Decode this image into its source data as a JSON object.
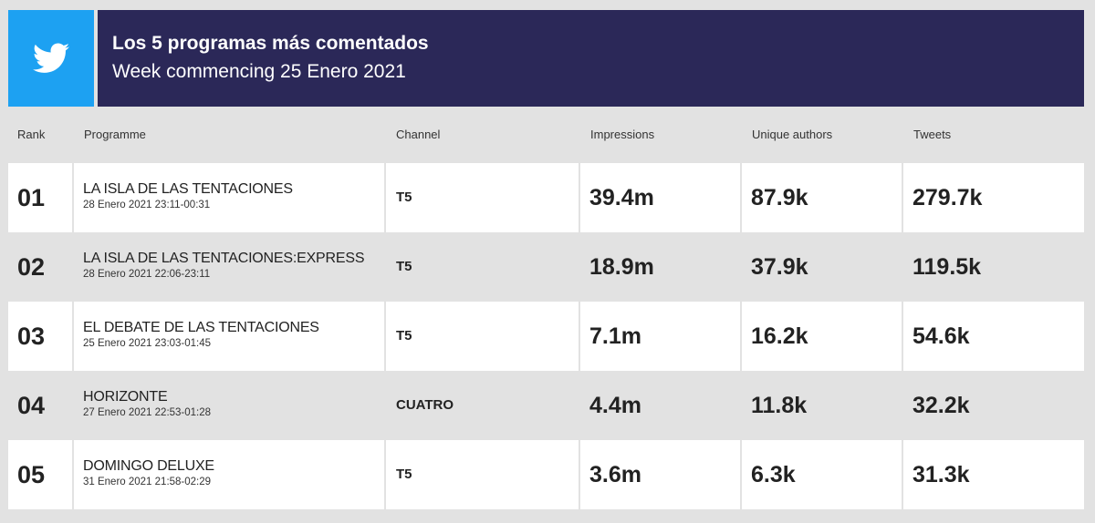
{
  "header": {
    "icon": "twitter-bird-icon",
    "brand_color": "#1da1f2",
    "banner_color": "#2b2858",
    "title": "Los 5 programas más comentados",
    "subtitle": "Week commencing 25 Enero 2021"
  },
  "chart_data": {
    "type": "table",
    "columns": [
      "Rank",
      "Programme",
      "Channel",
      "Impressions",
      "Unique authors",
      "Tweets"
    ],
    "rows": [
      {
        "rank": "01",
        "programme": "LA ISLA DE LAS TENTACIONES",
        "time": "28 Enero 2021 23:11-00:31",
        "channel": "T5",
        "impressions": "39.4m",
        "unique_authors": "87.9k",
        "tweets": "279.7k"
      },
      {
        "rank": "02",
        "programme": "LA ISLA DE LAS TENTACIONES:EXPRESS",
        "time": "28 Enero 2021 22:06-23:11",
        "channel": "T5",
        "impressions": "18.9m",
        "unique_authors": "37.9k",
        "tweets": "119.5k"
      },
      {
        "rank": "03",
        "programme": "EL DEBATE DE LAS TENTACIONES",
        "time": "25 Enero 2021 23:03-01:45",
        "channel": "T5",
        "impressions": "7.1m",
        "unique_authors": "16.2k",
        "tweets": "54.6k"
      },
      {
        "rank": "04",
        "programme": "HORIZONTE",
        "time": "27 Enero 2021 22:53-01:28",
        "channel": "CUATRO",
        "impressions": "4.4m",
        "unique_authors": "11.8k",
        "tweets": "32.2k"
      },
      {
        "rank": "05",
        "programme": "DOMINGO DELUXE",
        "time": "31 Enero 2021 21:58-02:29",
        "channel": "T5",
        "impressions": "3.6m",
        "unique_authors": "6.3k",
        "tweets": "31.3k"
      }
    ]
  }
}
